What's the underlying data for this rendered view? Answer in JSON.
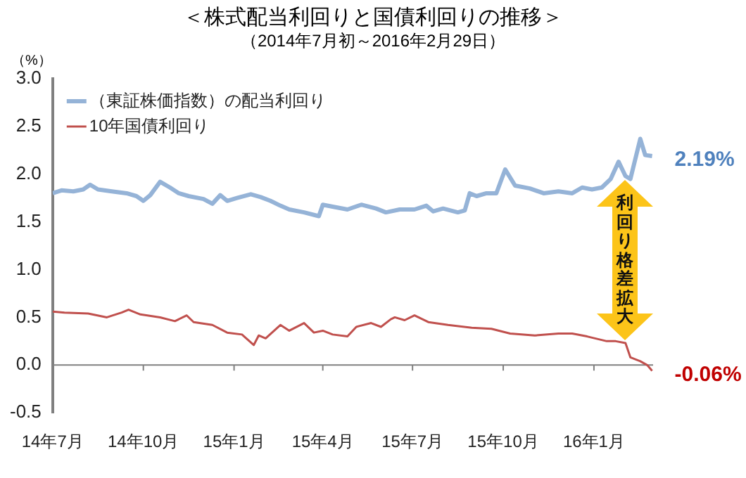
{
  "chart_data": {
    "type": "line",
    "title": "＜株式配当利回りと国債利回りの推移＞",
    "subtitle": "（2014年7月初～2016年2月29日）",
    "ylabel": "（%）",
    "xlim": [
      "2014-07-01",
      "2016-03-01"
    ],
    "xticks": [
      {
        "value": "2014-07-01",
        "label": "14年7月"
      },
      {
        "value": "2014-10-01",
        "label": "14年10月"
      },
      {
        "value": "2015-01-01",
        "label": "15年1月"
      },
      {
        "value": "2015-04-01",
        "label": "15年4月"
      },
      {
        "value": "2015-07-01",
        "label": "15年7月"
      },
      {
        "value": "2015-10-01",
        "label": "15年10月"
      },
      {
        "value": "2016-01-01",
        "label": "16年1月"
      }
    ],
    "ylim": [
      -0.5,
      3.0
    ],
    "yticks": [
      -0.5,
      {
        "value": 0,
        "label": "0.0"
      },
      0.5,
      {
        "value": 1,
        "label": "1.0"
      },
      1.5,
      {
        "value": 2,
        "label": "2.0"
      },
      2.5,
      {
        "value": 3,
        "label": "3.0"
      }
    ],
    "grid": false,
    "legend": "top left",
    "marker": "none",
    "line_style": "solid",
    "ref_lines": [
      {
        "axis": "y",
        "value": 0,
        "color": "#808080"
      }
    ],
    "series": [
      {
        "name": "（東証株価指数）の配当利回り",
        "color": "#95b3d7",
        "x": [
          "2014-07-01",
          "2014-07-10",
          "2014-07-22",
          "2014-08-01",
          "2014-08-08",
          "2014-08-16",
          "2014-08-30",
          "2014-09-14",
          "2014-09-24",
          "2014-10-01",
          "2014-10-08",
          "2014-10-18",
          "2014-10-28",
          "2014-11-06",
          "2014-11-16",
          "2014-12-01",
          "2014-12-10",
          "2014-12-18",
          "2014-12-25",
          "2015-01-04",
          "2015-01-18",
          "2015-01-28",
          "2015-02-07",
          "2015-02-17",
          "2015-02-26",
          "2015-03-13",
          "2015-03-28",
          "2015-04-01",
          "2015-04-11",
          "2015-04-26",
          "2015-05-10",
          "2015-05-25",
          "2015-06-04",
          "2015-06-18",
          "2015-07-03",
          "2015-07-15",
          "2015-07-22",
          "2015-08-01",
          "2015-08-16",
          "2015-08-23",
          "2015-08-28",
          "2015-09-04",
          "2015-09-14",
          "2015-09-24",
          "2015-10-03",
          "2015-10-13",
          "2015-10-28",
          "2015-11-11",
          "2015-11-26",
          "2015-12-10",
          "2015-12-20",
          "2015-12-30",
          "2016-01-09",
          "2016-01-18",
          "2016-01-26",
          "2016-02-02",
          "2016-02-07",
          "2016-02-17",
          "2016-02-22",
          "2016-02-29"
        ],
        "values": [
          1.8,
          1.83,
          1.82,
          1.84,
          1.89,
          1.84,
          1.82,
          1.8,
          1.77,
          1.72,
          1.78,
          1.92,
          1.86,
          1.8,
          1.77,
          1.74,
          1.69,
          1.78,
          1.72,
          1.75,
          1.79,
          1.76,
          1.72,
          1.67,
          1.63,
          1.6,
          1.56,
          1.68,
          1.66,
          1.63,
          1.68,
          1.64,
          1.6,
          1.63,
          1.63,
          1.67,
          1.61,
          1.64,
          1.6,
          1.62,
          1.8,
          1.77,
          1.8,
          1.8,
          2.05,
          1.88,
          1.85,
          1.8,
          1.82,
          1.8,
          1.86,
          1.84,
          1.86,
          1.95,
          2.13,
          1.98,
          1.95,
          2.37,
          2.2,
          2.19
        ]
      },
      {
        "name": "10年国債利回り",
        "color": "#c0504d",
        "x": [
          "2014-07-01",
          "2014-07-13",
          "2014-08-06",
          "2014-08-25",
          "2014-09-09",
          "2014-09-16",
          "2014-09-28",
          "2014-10-18",
          "2014-11-02",
          "2014-11-14",
          "2014-11-21",
          "2014-12-10",
          "2014-12-25",
          "2015-01-09",
          "2015-01-21",
          "2015-01-26",
          "2015-02-02",
          "2015-02-17",
          "2015-02-26",
          "2015-03-13",
          "2015-03-23",
          "2015-04-01",
          "2015-04-11",
          "2015-04-26",
          "2015-05-05",
          "2015-05-20",
          "2015-05-30",
          "2015-06-09",
          "2015-06-13",
          "2015-06-23",
          "2015-07-03",
          "2015-07-17",
          "2015-08-06",
          "2015-08-30",
          "2015-09-19",
          "2015-10-08",
          "2015-11-02",
          "2015-11-26",
          "2015-12-10",
          "2015-12-25",
          "2016-01-14",
          "2016-01-23",
          "2016-02-02",
          "2016-02-07",
          "2016-02-17",
          "2016-02-24",
          "2016-02-29"
        ],
        "values": [
          0.56,
          0.55,
          0.54,
          0.5,
          0.55,
          0.58,
          0.53,
          0.5,
          0.46,
          0.52,
          0.45,
          0.42,
          0.34,
          0.32,
          0.21,
          0.31,
          0.28,
          0.42,
          0.36,
          0.44,
          0.34,
          0.36,
          0.32,
          0.3,
          0.4,
          0.44,
          0.4,
          0.48,
          0.5,
          0.47,
          0.52,
          0.45,
          0.42,
          0.39,
          0.38,
          0.33,
          0.31,
          0.33,
          0.33,
          0.3,
          0.25,
          0.25,
          0.23,
          0.08,
          0.04,
          0.0,
          -0.06
        ]
      }
    ],
    "annotations": [
      {
        "text": "2.19%",
        "x": "2016-02-29",
        "y": 2.19
      },
      {
        "text": "-0.06%",
        "x": "2016-02-29",
        "y": -0.06
      },
      "利回り格差拡大"
    ]
  }
}
